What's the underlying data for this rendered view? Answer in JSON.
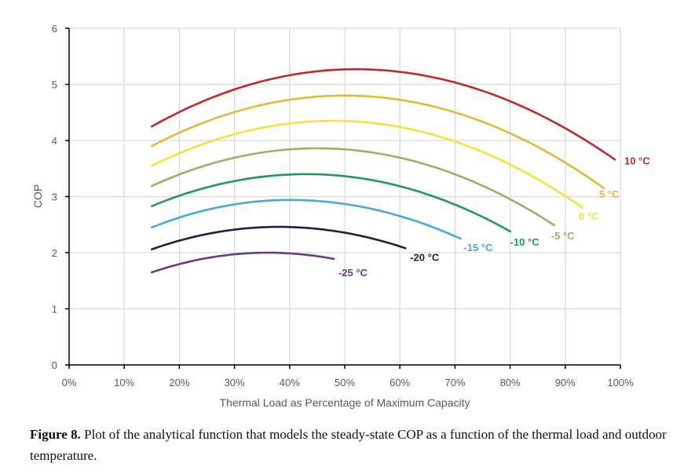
{
  "chart_data": {
    "type": "line",
    "title": "",
    "xlabel": "Thermal Load as Percentage of Maximum Capacity",
    "ylabel": "COP",
    "xlim": [
      0,
      100
    ],
    "ylim": [
      0,
      6
    ],
    "grid": true,
    "x_ticks": [
      "0%",
      "10%",
      "20%",
      "30%",
      "40%",
      "50%",
      "60%",
      "70%",
      "80%",
      "90%",
      "100%"
    ],
    "x_tick_values": [
      0,
      10,
      20,
      30,
      40,
      50,
      60,
      70,
      80,
      90,
      100
    ],
    "y_ticks": [
      "0",
      "1",
      "2",
      "3",
      "4",
      "5",
      "6"
    ],
    "y_tick_values": [
      0,
      1,
      2,
      3,
      4,
      5,
      6
    ],
    "legend": "inline-labels-at-line-ends",
    "series": [
      {
        "name": "10 °C",
        "color": "#c0282e",
        "start": [
          15,
          4.25
        ],
        "peak": [
          52,
          5.27
        ],
        "end": [
          99,
          3.66
        ]
      },
      {
        "name": "5 °C",
        "color": "#e3b83a",
        "start": [
          15,
          3.9
        ],
        "peak": [
          50,
          4.8
        ],
        "end": [
          97,
          3.15
        ]
      },
      {
        "name": "0 °C",
        "color": "#f2e33c",
        "start": [
          15,
          3.55
        ],
        "peak": [
          48,
          4.35
        ],
        "end": [
          93,
          2.81
        ]
      },
      {
        "name": "-5 °C",
        "color": "#93b562",
        "start": [
          15,
          3.19
        ],
        "peak": [
          45,
          3.86
        ],
        "end": [
          88,
          2.49
        ]
      },
      {
        "name": "-10 °C",
        "color": "#1f9a52",
        "start": [
          15,
          2.83
        ],
        "peak": [
          43,
          3.4
        ],
        "end": [
          80,
          2.38
        ]
      },
      {
        "name": "-15 °C",
        "color": "#47a9d6",
        "start": [
          15,
          2.45
        ],
        "peak": [
          40,
          2.94
        ],
        "end": [
          71,
          2.25
        ]
      },
      {
        "name": "-20 °C",
        "color": "#1b2147",
        "start": [
          15,
          2.06
        ],
        "peak": [
          38,
          2.46
        ],
        "end": [
          61,
          2.08
        ]
      },
      {
        "name": "-25 °C",
        "color": "#6a3a86",
        "start": [
          15,
          1.65
        ],
        "peak": [
          36,
          2.0
        ],
        "end": [
          48,
          1.89
        ]
      }
    ]
  },
  "caption": {
    "label": "Figure 8.",
    "text": " Plot of the analytical function that models the steady-state COP as a function of the thermal load and outdoor temperature."
  }
}
